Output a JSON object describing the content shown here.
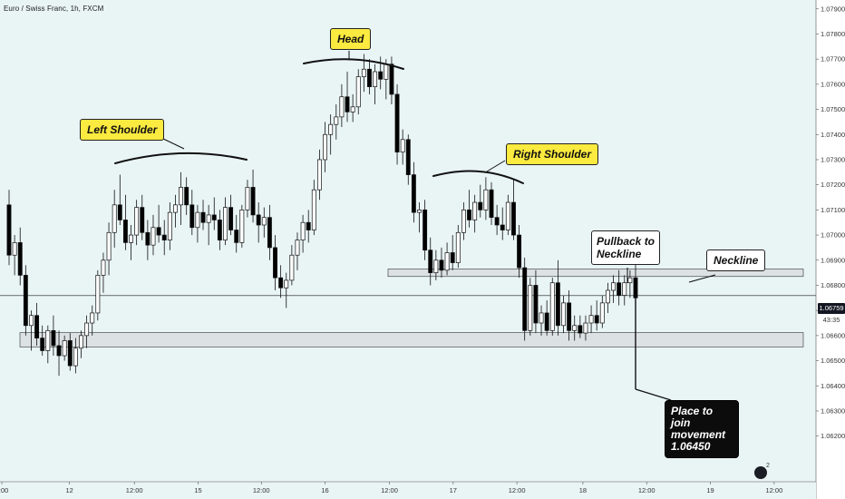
{
  "header": {
    "symbol_title": "Euro / Swiss Franc, 1h, FXCM"
  },
  "chart_data": {
    "type": "candlestick",
    "title": "Euro / Swiss Franc, 1h, FXCM",
    "y_axis": {
      "ticks": [
        "1.06200",
        "1.06300",
        "1.06400",
        "1.06500",
        "1.06600",
        "1.06700",
        "1.06800",
        "1.06900",
        "1.07000",
        "1.07100",
        "1.07200",
        "1.07300",
        "1.07400",
        "1.07500",
        "1.07600",
        "1.07700",
        "1.07800",
        "1.07900"
      ],
      "range": [
        1.0615,
        1.0796
      ],
      "side": "right",
      "grid": false
    },
    "x_axis": {
      "ticks": [
        "2:00",
        "12",
        "12:00",
        "15",
        "12:00",
        "16",
        "12:00",
        "17",
        "12:00",
        "18",
        "12:00",
        "19",
        "12:00"
      ]
    },
    "last_price": "1.06759",
    "countdown": "43:35",
    "candles": [
      {
        "o": 1.0712,
        "h": 1.0718,
        "l": 1.0688,
        "c": 1.0692
      },
      {
        "o": 1.0692,
        "h": 1.07,
        "l": 1.0684,
        "c": 1.0697
      },
      {
        "o": 1.0697,
        "h": 1.0703,
        "l": 1.068,
        "c": 1.0684
      },
      {
        "o": 1.0684,
        "h": 1.0688,
        "l": 1.066,
        "c": 1.0664
      },
      {
        "o": 1.0664,
        "h": 1.067,
        "l": 1.0654,
        "c": 1.0668
      },
      {
        "o": 1.0668,
        "h": 1.0673,
        "l": 1.0656,
        "c": 1.0659
      },
      {
        "o": 1.0659,
        "h": 1.0664,
        "l": 1.0652,
        "c": 1.0654
      },
      {
        "o": 1.0654,
        "h": 1.0664,
        "l": 1.0649,
        "c": 1.0662
      },
      {
        "o": 1.0662,
        "h": 1.0668,
        "l": 1.0652,
        "c": 1.0656
      },
      {
        "o": 1.0656,
        "h": 1.0662,
        "l": 1.0644,
        "c": 1.0652
      },
      {
        "o": 1.0652,
        "h": 1.066,
        "l": 1.065,
        "c": 1.0658
      },
      {
        "o": 1.0658,
        "h": 1.0661,
        "l": 1.0646,
        "c": 1.0648
      },
      {
        "o": 1.0648,
        "h": 1.0659,
        "l": 1.0645,
        "c": 1.0655
      },
      {
        "o": 1.0655,
        "h": 1.0662,
        "l": 1.0651,
        "c": 1.066
      },
      {
        "o": 1.066,
        "h": 1.0668,
        "l": 1.0655,
        "c": 1.0665
      },
      {
        "o": 1.0665,
        "h": 1.0672,
        "l": 1.066,
        "c": 1.0669
      },
      {
        "o": 1.0669,
        "h": 1.0686,
        "l": 1.0666,
        "c": 1.0684
      },
      {
        "o": 1.0684,
        "h": 1.0693,
        "l": 1.0677,
        "c": 1.069
      },
      {
        "o": 1.069,
        "h": 1.0705,
        "l": 1.0684,
        "c": 1.0701
      },
      {
        "o": 1.0701,
        "h": 1.0718,
        "l": 1.0695,
        "c": 1.0712
      },
      {
        "o": 1.0712,
        "h": 1.0724,
        "l": 1.0704,
        "c": 1.0706
      },
      {
        "o": 1.0706,
        "h": 1.0716,
        "l": 1.0694,
        "c": 1.0697
      },
      {
        "o": 1.0697,
        "h": 1.0704,
        "l": 1.069,
        "c": 1.07
      },
      {
        "o": 1.07,
        "h": 1.0714,
        "l": 1.0696,
        "c": 1.0711
      },
      {
        "o": 1.0711,
        "h": 1.0716,
        "l": 1.0698,
        "c": 1.0701
      },
      {
        "o": 1.0701,
        "h": 1.0706,
        "l": 1.069,
        "c": 1.0696
      },
      {
        "o": 1.0696,
        "h": 1.0708,
        "l": 1.0692,
        "c": 1.0703
      },
      {
        "o": 1.0703,
        "h": 1.0712,
        "l": 1.0697,
        "c": 1.07
      },
      {
        "o": 1.07,
        "h": 1.0706,
        "l": 1.0692,
        "c": 1.0698
      },
      {
        "o": 1.0698,
        "h": 1.0713,
        "l": 1.0694,
        "c": 1.0709
      },
      {
        "o": 1.0709,
        "h": 1.0716,
        "l": 1.0703,
        "c": 1.0712
      },
      {
        "o": 1.0712,
        "h": 1.0725,
        "l": 1.0704,
        "c": 1.0719
      },
      {
        "o": 1.0719,
        "h": 1.0723,
        "l": 1.0708,
        "c": 1.0712
      },
      {
        "o": 1.0712,
        "h": 1.0718,
        "l": 1.07,
        "c": 1.0703
      },
      {
        "o": 1.0703,
        "h": 1.0712,
        "l": 1.0697,
        "c": 1.0709
      },
      {
        "o": 1.0709,
        "h": 1.0714,
        "l": 1.0702,
        "c": 1.0705
      },
      {
        "o": 1.0705,
        "h": 1.0712,
        "l": 1.0696,
        "c": 1.0708
      },
      {
        "o": 1.0708,
        "h": 1.0715,
        "l": 1.0702,
        "c": 1.0706
      },
      {
        "o": 1.0706,
        "h": 1.071,
        "l": 1.0694,
        "c": 1.0698
      },
      {
        "o": 1.0698,
        "h": 1.0715,
        "l": 1.0696,
        "c": 1.0711
      },
      {
        "o": 1.0711,
        "h": 1.0716,
        "l": 1.07,
        "c": 1.0702
      },
      {
        "o": 1.0702,
        "h": 1.0708,
        "l": 1.0693,
        "c": 1.0697
      },
      {
        "o": 1.0697,
        "h": 1.0712,
        "l": 1.0695,
        "c": 1.071
      },
      {
        "o": 1.071,
        "h": 1.0722,
        "l": 1.0707,
        "c": 1.0719
      },
      {
        "o": 1.0719,
        "h": 1.0726,
        "l": 1.0705,
        "c": 1.0708
      },
      {
        "o": 1.0708,
        "h": 1.0713,
        "l": 1.0697,
        "c": 1.0704
      },
      {
        "o": 1.0704,
        "h": 1.0711,
        "l": 1.0699,
        "c": 1.0707
      },
      {
        "o": 1.0707,
        "h": 1.0712,
        "l": 1.069,
        "c": 1.0695
      },
      {
        "o": 1.0695,
        "h": 1.07,
        "l": 1.0678,
        "c": 1.0683
      },
      {
        "o": 1.0683,
        "h": 1.0688,
        "l": 1.0675,
        "c": 1.0679
      },
      {
        "o": 1.0679,
        "h": 1.0685,
        "l": 1.0671,
        "c": 1.0682
      },
      {
        "o": 1.0682,
        "h": 1.0696,
        "l": 1.068,
        "c": 1.0692
      },
      {
        "o": 1.0692,
        "h": 1.0701,
        "l": 1.0686,
        "c": 1.0698
      },
      {
        "o": 1.0698,
        "h": 1.0708,
        "l": 1.0693,
        "c": 1.0705
      },
      {
        "o": 1.0705,
        "h": 1.071,
        "l": 1.0697,
        "c": 1.0702
      },
      {
        "o": 1.0702,
        "h": 1.0722,
        "l": 1.07,
        "c": 1.0718
      },
      {
        "o": 1.0718,
        "h": 1.0734,
        "l": 1.0714,
        "c": 1.073
      },
      {
        "o": 1.073,
        "h": 1.0745,
        "l": 1.0725,
        "c": 1.074
      },
      {
        "o": 1.074,
        "h": 1.0748,
        "l": 1.0732,
        "c": 1.0744
      },
      {
        "o": 1.0744,
        "h": 1.0752,
        "l": 1.0738,
        "c": 1.0747
      },
      {
        "o": 1.0747,
        "h": 1.076,
        "l": 1.0743,
        "c": 1.0755
      },
      {
        "o": 1.0755,
        "h": 1.0765,
        "l": 1.0745,
        "c": 1.0749
      },
      {
        "o": 1.0749,
        "h": 1.0756,
        "l": 1.0745,
        "c": 1.0751
      },
      {
        "o": 1.0751,
        "h": 1.0766,
        "l": 1.0748,
        "c": 1.0763
      },
      {
        "o": 1.0763,
        "h": 1.0772,
        "l": 1.0757,
        "c": 1.0766
      },
      {
        "o": 1.0766,
        "h": 1.077,
        "l": 1.0756,
        "c": 1.0759
      },
      {
        "o": 1.0759,
        "h": 1.0768,
        "l": 1.0752,
        "c": 1.0765
      },
      {
        "o": 1.0765,
        "h": 1.0771,
        "l": 1.0758,
        "c": 1.0762
      },
      {
        "o": 1.0762,
        "h": 1.077,
        "l": 1.0754,
        "c": 1.0768
      },
      {
        "o": 1.0768,
        "h": 1.0771,
        "l": 1.0752,
        "c": 1.0756
      },
      {
        "o": 1.0756,
        "h": 1.076,
        "l": 1.0728,
        "c": 1.0733
      },
      {
        "o": 1.0733,
        "h": 1.0742,
        "l": 1.0728,
        "c": 1.0738
      },
      {
        "o": 1.0738,
        "h": 1.074,
        "l": 1.072,
        "c": 1.0724
      },
      {
        "o": 1.0724,
        "h": 1.0729,
        "l": 1.0705,
        "c": 1.0709
      },
      {
        "o": 1.0709,
        "h": 1.0713,
        "l": 1.0701,
        "c": 1.071
      },
      {
        "o": 1.071,
        "h": 1.0714,
        "l": 1.069,
        "c": 1.0694
      },
      {
        "o": 1.0694,
        "h": 1.0699,
        "l": 1.068,
        "c": 1.0685
      },
      {
        "o": 1.0685,
        "h": 1.0694,
        "l": 1.0682,
        "c": 1.069
      },
      {
        "o": 1.069,
        "h": 1.0695,
        "l": 1.0683,
        "c": 1.0686
      },
      {
        "o": 1.0686,
        "h": 1.0697,
        "l": 1.0684,
        "c": 1.0693
      },
      {
        "o": 1.0693,
        "h": 1.07,
        "l": 1.0686,
        "c": 1.0689
      },
      {
        "o": 1.0689,
        "h": 1.0704,
        "l": 1.0687,
        "c": 1.0701
      },
      {
        "o": 1.0701,
        "h": 1.0713,
        "l": 1.0698,
        "c": 1.071
      },
      {
        "o": 1.071,
        "h": 1.0718,
        "l": 1.0703,
        "c": 1.0706
      },
      {
        "o": 1.0706,
        "h": 1.0716,
        "l": 1.0701,
        "c": 1.0713
      },
      {
        "o": 1.0713,
        "h": 1.072,
        "l": 1.0707,
        "c": 1.071
      },
      {
        "o": 1.071,
        "h": 1.0723,
        "l": 1.0706,
        "c": 1.0718
      },
      {
        "o": 1.0718,
        "h": 1.0721,
        "l": 1.0704,
        "c": 1.0707
      },
      {
        "o": 1.0707,
        "h": 1.0712,
        "l": 1.07,
        "c": 1.0704
      },
      {
        "o": 1.0704,
        "h": 1.0711,
        "l": 1.0698,
        "c": 1.0702
      },
      {
        "o": 1.0702,
        "h": 1.0716,
        "l": 1.07,
        "c": 1.0713
      },
      {
        "o": 1.0713,
        "h": 1.0722,
        "l": 1.0698,
        "c": 1.07
      },
      {
        "o": 1.07,
        "h": 1.0704,
        "l": 1.0683,
        "c": 1.0687
      },
      {
        "o": 1.0687,
        "h": 1.0691,
        "l": 1.0658,
        "c": 1.0662
      },
      {
        "o": 1.0662,
        "h": 1.0683,
        "l": 1.066,
        "c": 1.068
      },
      {
        "o": 1.068,
        "h": 1.0686,
        "l": 1.0661,
        "c": 1.0665
      },
      {
        "o": 1.0665,
        "h": 1.0672,
        "l": 1.066,
        "c": 1.0669
      },
      {
        "o": 1.0669,
        "h": 1.0674,
        "l": 1.066,
        "c": 1.0662
      },
      {
        "o": 1.0662,
        "h": 1.0683,
        "l": 1.066,
        "c": 1.0681
      },
      {
        "o": 1.0681,
        "h": 1.069,
        "l": 1.066,
        "c": 1.0664
      },
      {
        "o": 1.0664,
        "h": 1.0676,
        "l": 1.0661,
        "c": 1.0673
      },
      {
        "o": 1.0673,
        "h": 1.0678,
        "l": 1.0658,
        "c": 1.0662
      },
      {
        "o": 1.0662,
        "h": 1.0668,
        "l": 1.0658,
        "c": 1.0664
      },
      {
        "o": 1.0664,
        "h": 1.0668,
        "l": 1.0659,
        "c": 1.0661
      },
      {
        "o": 1.0661,
        "h": 1.0668,
        "l": 1.0658,
        "c": 1.0665
      },
      {
        "o": 1.0665,
        "h": 1.0672,
        "l": 1.0661,
        "c": 1.0668
      },
      {
        "o": 1.0668,
        "h": 1.0674,
        "l": 1.0662,
        "c": 1.0665
      },
      {
        "o": 1.0665,
        "h": 1.0676,
        "l": 1.0663,
        "c": 1.0673
      },
      {
        "o": 1.0673,
        "h": 1.0681,
        "l": 1.0669,
        "c": 1.0678
      },
      {
        "o": 1.0678,
        "h": 1.0684,
        "l": 1.0673,
        "c": 1.0681
      },
      {
        "o": 1.0681,
        "h": 1.0686,
        "l": 1.0672,
        "c": 1.0676
      },
      {
        "o": 1.0676,
        "h": 1.0684,
        "l": 1.0672,
        "c": 1.0681
      },
      {
        "o": 1.0681,
        "h": 1.0686,
        "l": 1.0675,
        "c": 1.0683
      },
      {
        "o": 1.0683,
        "h": 1.0689,
        "l": 1.067,
        "c": 1.0675
      }
    ],
    "zones": [
      {
        "label": "Neckline zone",
        "y_low": 1.06835,
        "y_high": 1.06865
      },
      {
        "label": "Support zone",
        "y_low": 1.06555,
        "y_high": 1.06612
      }
    ],
    "annotations": [
      "Left Shoulder",
      "Head",
      "Right Shoulder",
      "Pullback to Neckline",
      "Neckline",
      "Place to join movement 1.06450"
    ]
  },
  "callouts": {
    "left_shoulder": "Left Shoulder",
    "head": "Head",
    "right_shoulder": "Right Shoulder",
    "pullback_line1": "Pullback to",
    "pullback_line2": "Neckline",
    "neckline": "Neckline",
    "join_line1": "Place to join",
    "join_line2": "movement",
    "join_line3": "1.06450"
  },
  "price_tags": {
    "last": "1.06759",
    "countdown": "43:35"
  },
  "footer": {
    "badge_count": "2"
  },
  "colors": {
    "background": "#e9f4f5",
    "candle_up": "#ffffff",
    "candle_down": "#000000",
    "callout_yellow": "#fbea3f",
    "zone_fill": "#d7dbdc"
  }
}
